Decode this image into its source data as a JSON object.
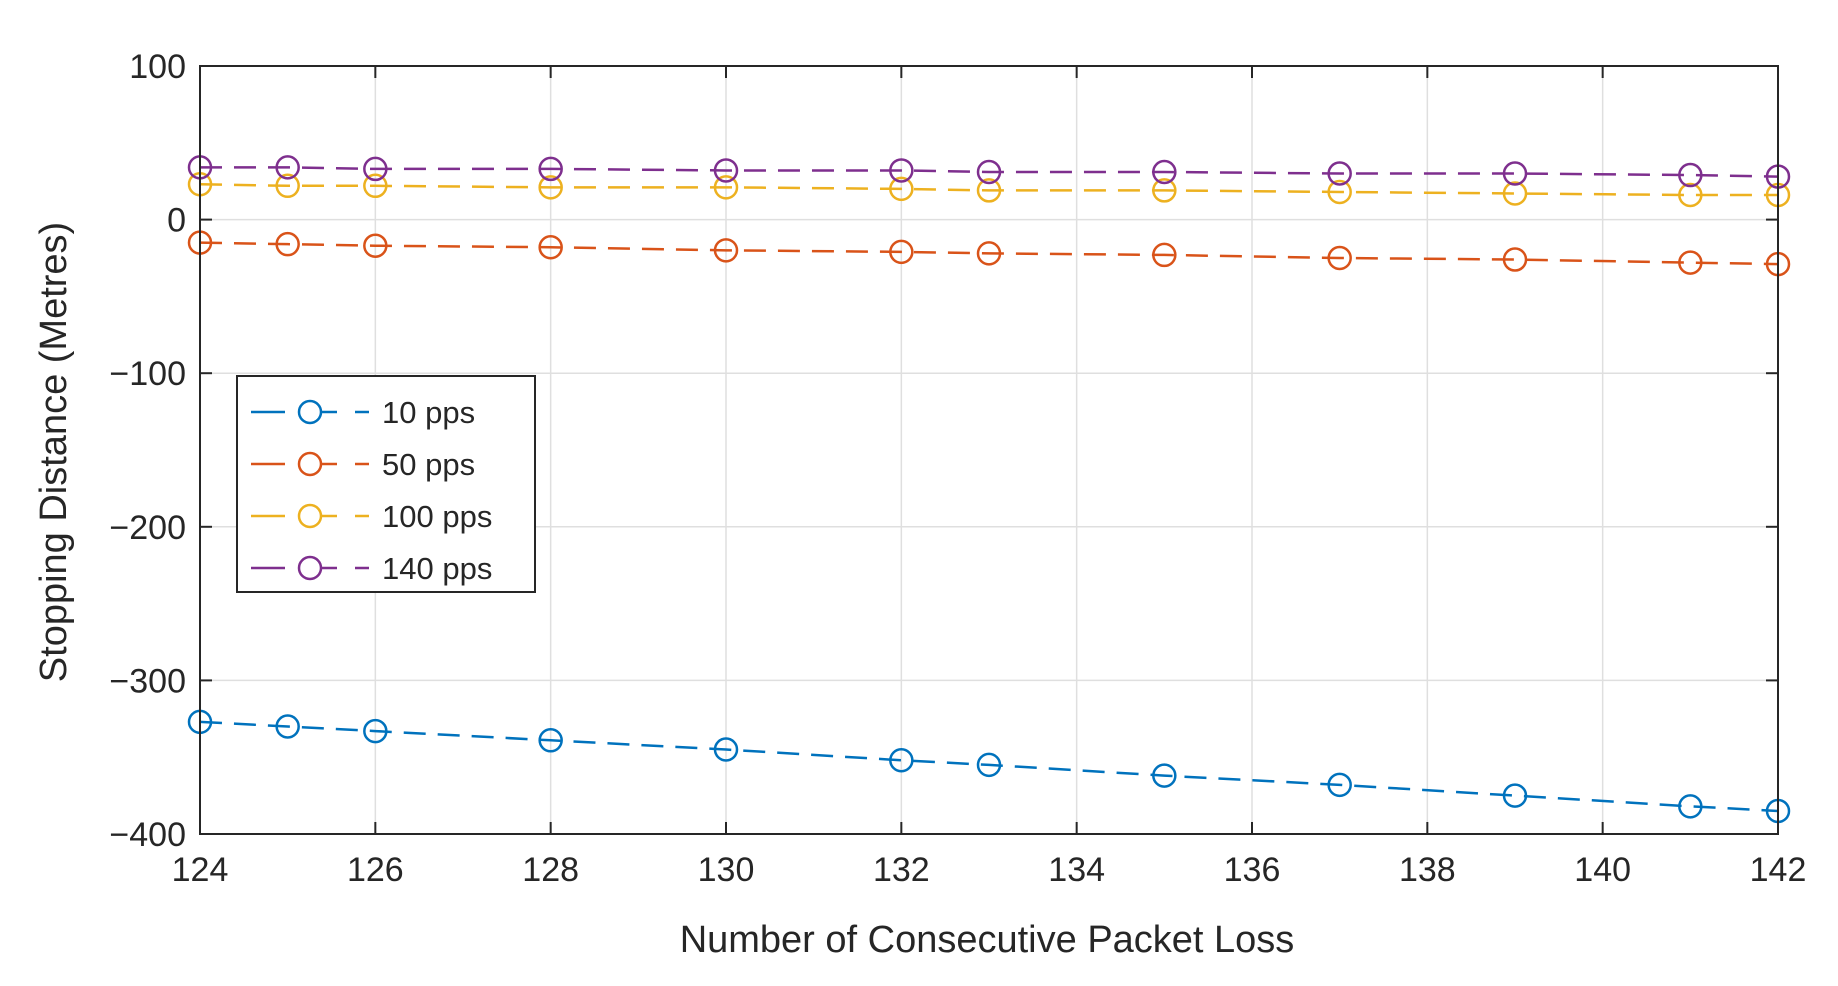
{
  "chart_data": {
    "type": "line",
    "title": "",
    "xlabel": "Number of Consecutive Packet Loss",
    "ylabel": "Stopping Distance (Metres)",
    "xlim": [
      124,
      142
    ],
    "ylim": [
      -400,
      100
    ],
    "xticks": [
      124,
      126,
      128,
      130,
      132,
      134,
      136,
      138,
      140,
      142
    ],
    "yticks": [
      -400,
      -300,
      -200,
      -100,
      0,
      100
    ],
    "xtick_labels": [
      "124",
      "126",
      "128",
      "130",
      "132",
      "134",
      "136",
      "138",
      "140",
      "142"
    ],
    "ytick_labels": [
      "−400",
      "−300",
      "−200",
      "−100",
      "0",
      "100"
    ],
    "grid": true,
    "legend_position": "middle-left",
    "x": [
      124,
      125,
      126,
      128,
      130,
      132,
      133,
      135,
      137,
      139,
      141,
      142
    ],
    "series": [
      {
        "name": "10 pps",
        "color": "#0072BD",
        "marker": "circle",
        "line": "dashed",
        "values": [
          -327,
          -330,
          -333,
          -339,
          -345,
          -352,
          -355,
          -362,
          -368,
          -375,
          -382,
          -385
        ]
      },
      {
        "name": "50 pps",
        "color": "#D95319",
        "marker": "circle",
        "line": "dashed",
        "values": [
          -15,
          -16,
          -17,
          -18,
          -20,
          -21,
          -22,
          -23,
          -25,
          -26,
          -28,
          -29
        ]
      },
      {
        "name": "100 pps",
        "color": "#EDB120",
        "marker": "circle",
        "line": "dashed",
        "values": [
          23,
          22,
          22,
          21,
          21,
          20,
          19,
          19,
          18,
          17,
          16,
          16
        ]
      },
      {
        "name": "140 pps",
        "color": "#7E2F8E",
        "marker": "circle",
        "line": "dashed",
        "values": [
          34,
          34,
          33,
          33,
          32,
          32,
          31,
          31,
          30,
          30,
          29,
          28
        ]
      }
    ]
  }
}
